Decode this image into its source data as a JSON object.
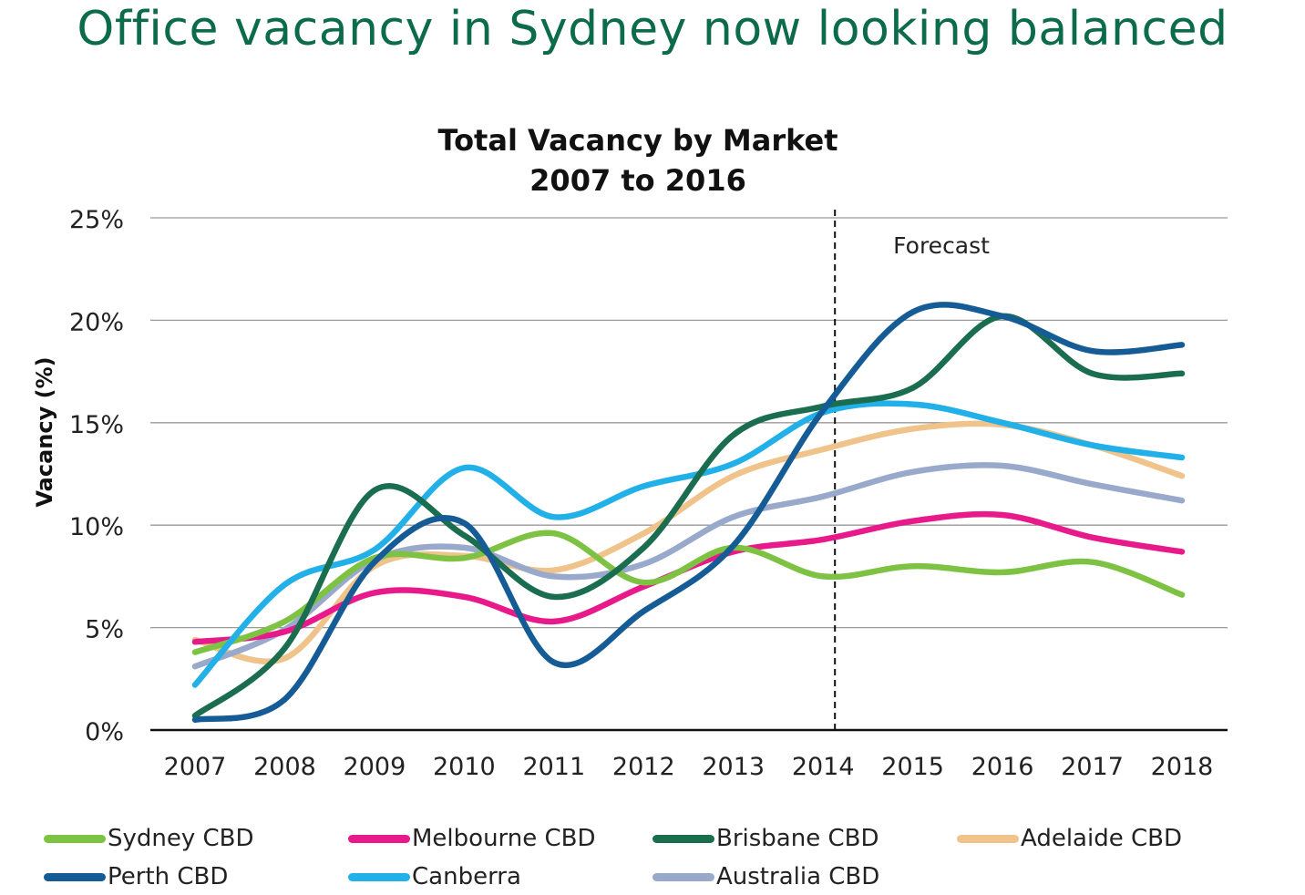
{
  "page": {
    "title": "Office vacancy in Sydney now looking balanced"
  },
  "chart_data": {
    "type": "line",
    "title": "Total Vacancy by Market",
    "subtitle": "2007 to 2016",
    "ylabel": "Vacancy (%)",
    "xlabel": "",
    "x": [
      "2007",
      "2008",
      "2009",
      "2010",
      "2011",
      "2012",
      "2013",
      "2014",
      "2015",
      "2016",
      "2017",
      "2018"
    ],
    "ylim": [
      0,
      25
    ],
    "yticks": [
      "0%",
      "5%",
      "10%",
      "15%",
      "20%",
      "25%"
    ],
    "grid": true,
    "legend_position": "bottom",
    "forecast_start": "2014",
    "annotation": "Forecast",
    "series": [
      {
        "name": "Sydney CBD",
        "color": "#7dc242",
        "values": [
          3.8,
          5.3,
          8.4,
          8.4,
          9.6,
          7.2,
          8.9,
          7.5,
          8.0,
          7.7,
          8.2,
          6.6
        ]
      },
      {
        "name": "Melbourne CBD",
        "color": "#e8198b",
        "values": [
          4.3,
          4.8,
          6.7,
          6.5,
          5.3,
          7.0,
          8.7,
          9.3,
          10.2,
          10.5,
          9.4,
          8.7
        ]
      },
      {
        "name": "Brisbane CBD",
        "color": "#1a6d4f",
        "values": [
          0.7,
          4.0,
          11.7,
          9.5,
          6.5,
          8.9,
          14.4,
          15.8,
          16.7,
          20.2,
          17.4,
          17.4
        ]
      },
      {
        "name": "Adelaide CBD",
        "color": "#efc38a",
        "values": [
          4.4,
          3.5,
          8.0,
          8.5,
          7.8,
          9.6,
          12.4,
          13.7,
          14.7,
          14.9,
          13.9,
          12.4
        ]
      },
      {
        "name": "Perth CBD",
        "color": "#155c96",
        "values": [
          0.5,
          1.5,
          8.2,
          10.1,
          3.3,
          5.8,
          9.0,
          15.6,
          20.4,
          20.2,
          18.5,
          18.8
        ]
      },
      {
        "name": "Canberra",
        "color": "#22b0e8",
        "values": [
          2.2,
          7.1,
          8.8,
          12.8,
          10.4,
          11.9,
          13.0,
          15.5,
          15.9,
          15.0,
          13.9,
          13.3
        ]
      },
      {
        "name": "Australia CBD",
        "color": "#98a9cc",
        "values": [
          3.1,
          4.9,
          8.3,
          8.9,
          7.5,
          8.1,
          10.4,
          11.4,
          12.6,
          12.9,
          12.0,
          11.2
        ]
      }
    ]
  }
}
